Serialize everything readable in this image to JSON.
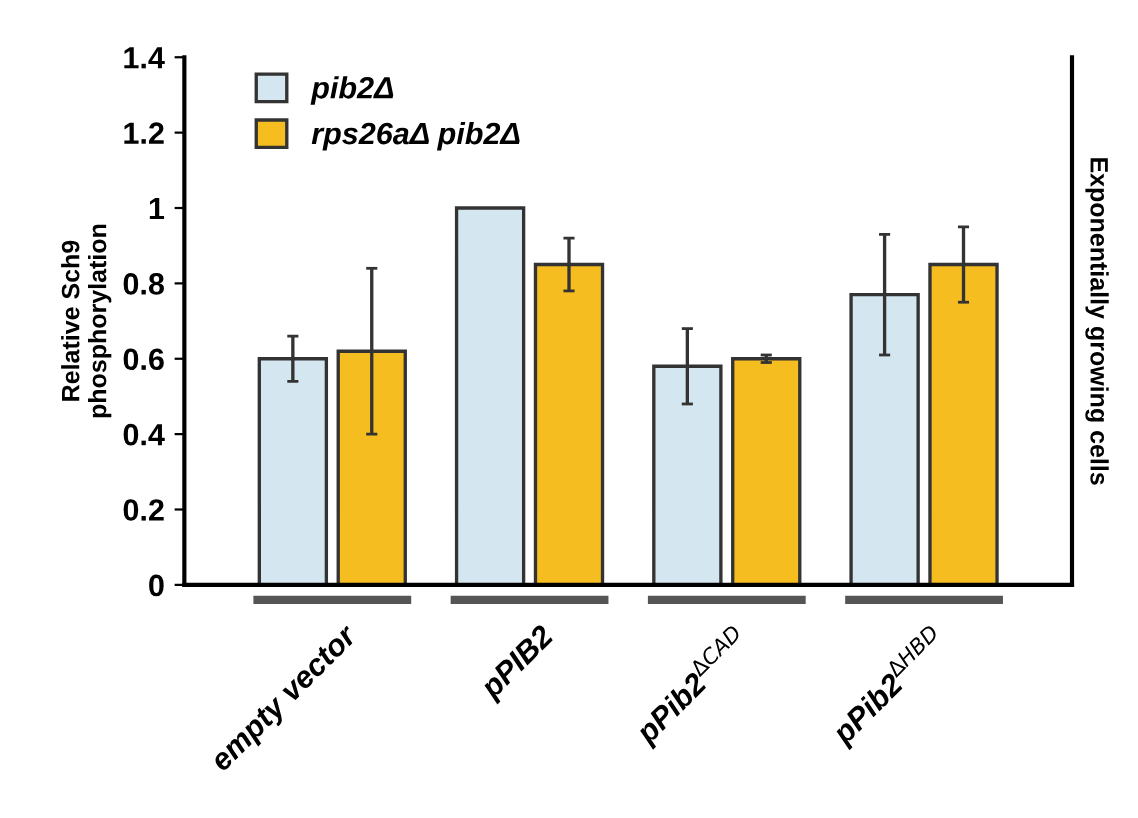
{
  "chart_data": {
    "type": "bar",
    "categories": [
      "empty vector",
      "pPIB2",
      "pPib2$^{ΔCAD}$",
      "pPib2$^{ΔHBD}$"
    ],
    "ylabel": "Relative Sch9\nphosphorylation",
    "annotations": [
      "Exponentially growing cells"
    ],
    "series": [
      {
        "name": "pib2Δ",
        "color": "#d4e6ef",
        "values": [
          0.6,
          1.0,
          0.58,
          0.77
        ],
        "errors": [
          0.06,
          null,
          0.1,
          0.16
        ]
      },
      {
        "name": "rps26aΔ pib2Δ",
        "color": "#f5bd1f",
        "values": [
          0.62,
          0.85,
          0.6,
          0.85
        ],
        "errors": [
          0.22,
          0.07,
          0.01,
          0.1
        ]
      }
    ],
    "ylim": [
      0,
      1.4
    ],
    "yticks": [
      0,
      0.2,
      0.4,
      0.6,
      0.8,
      1,
      1.2,
      1.4
    ],
    "grid": false,
    "legend": "top left"
  }
}
